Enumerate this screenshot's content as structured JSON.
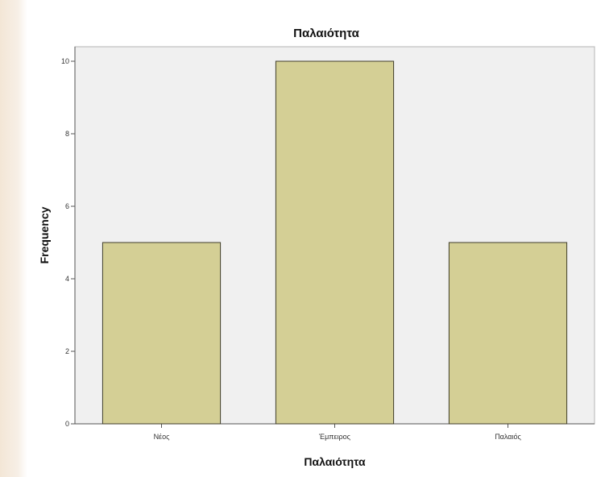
{
  "chart_data": {
    "type": "bar",
    "title": "Παλαιότητα",
    "xlabel": "Παλαιότητα",
    "ylabel": "Frequency",
    "categories": [
      "Νέος",
      "Έμπειρος",
      "Παλαιός"
    ],
    "values": [
      5,
      10,
      5
    ],
    "ylim": [
      0,
      10.4
    ],
    "yticks": [
      0,
      2,
      4,
      6,
      8,
      10
    ],
    "grid": false,
    "legend": "none",
    "colors": {
      "bar_fill": "#d4cf95",
      "bar_stroke": "#3f3d2a",
      "plot_background": "#f0f0f0",
      "axis": "#555555"
    }
  }
}
